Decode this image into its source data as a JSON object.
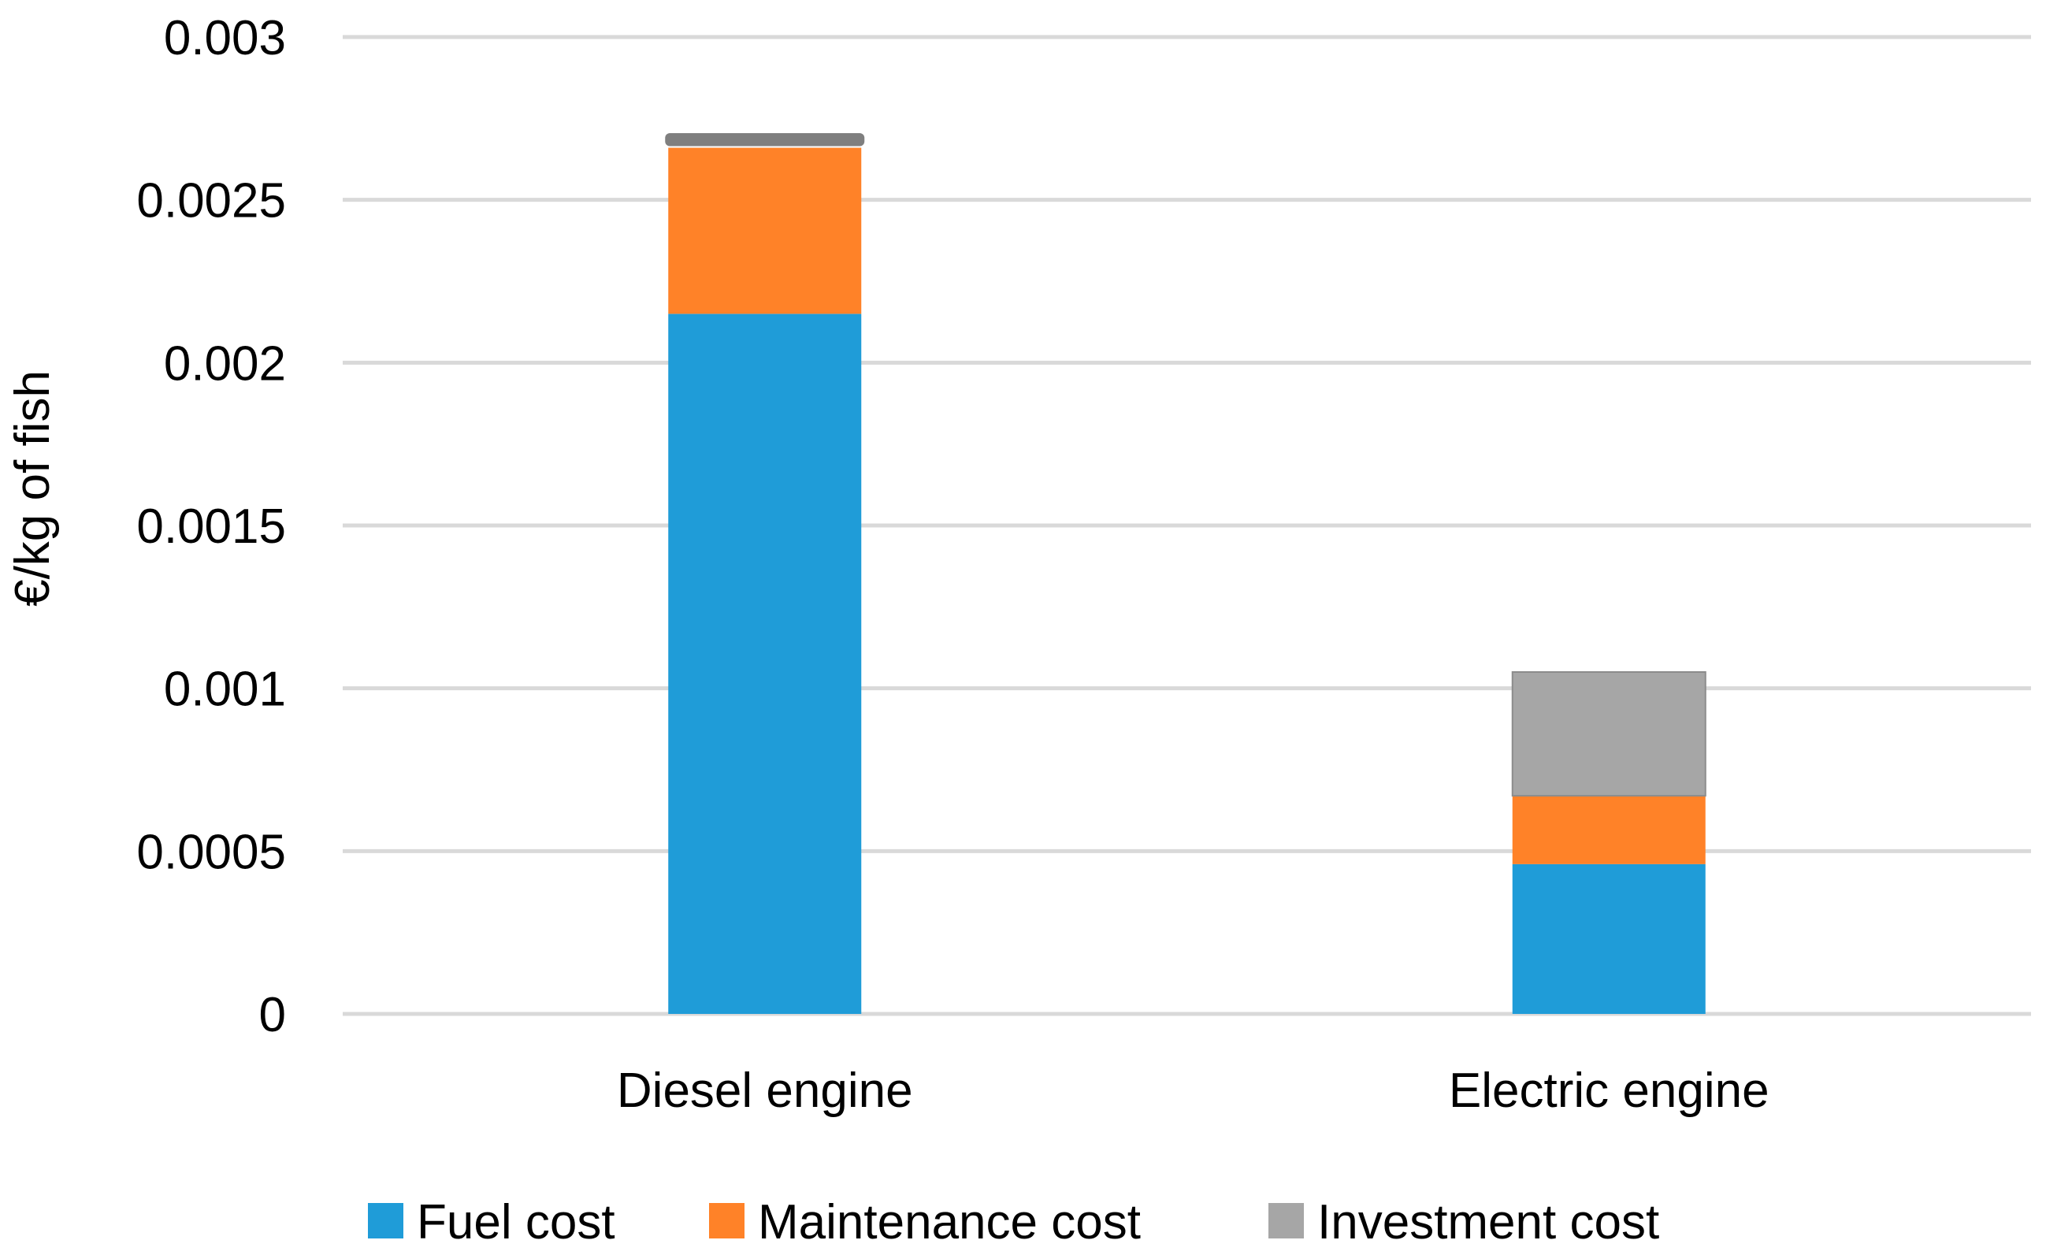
{
  "chart_data": {
    "type": "bar",
    "stacked": true,
    "categories": [
      "Diesel engine",
      "Electric engine"
    ],
    "series": [
      {
        "name": "Fuel cost",
        "color": "#1F9CD8",
        "values": [
          0.00215,
          0.00046
        ]
      },
      {
        "name": "Maintenance cost",
        "color": "#FF8228",
        "values": [
          0.00051,
          0.00021
        ]
      },
      {
        "name": "Investment cost",
        "color": "#A6A6A6",
        "values": [
          4e-05,
          0.00038
        ]
      }
    ],
    "ylabel": "€/kg of fish",
    "ylim": [
      0,
      0.003
    ],
    "yticks": [
      0,
      0.0005,
      0.001,
      0.0015,
      0.002,
      0.0025,
      0.003
    ],
    "ytick_labels": [
      "0",
      "0.0005",
      "0.001",
      "0.0015",
      "0.002",
      "0.0025",
      "0.003"
    ],
    "grid": true,
    "legend_position": "bottom",
    "gridline_color": "#D9D9D9"
  }
}
